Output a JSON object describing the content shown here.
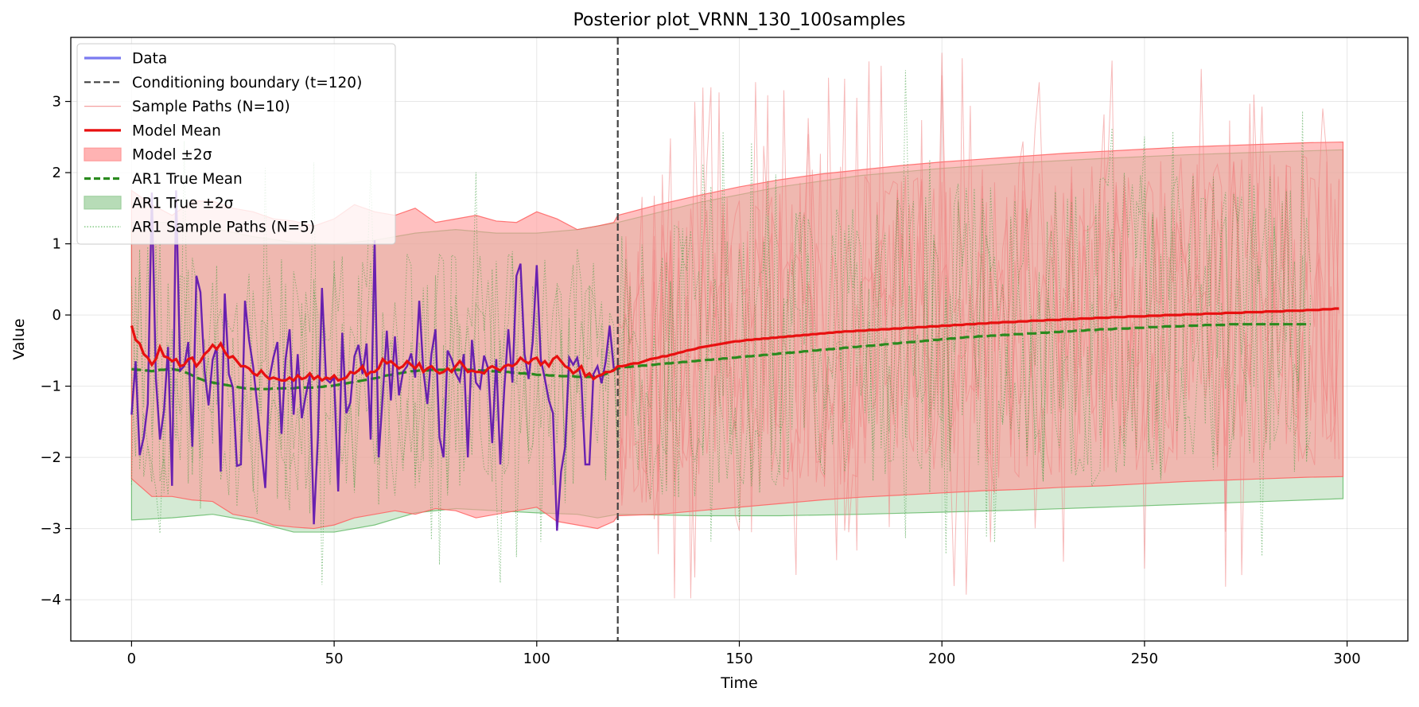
{
  "chart_data": {
    "type": "line",
    "title": "Posterior plot_VRNN_130_100samples",
    "xlabel": "Time",
    "ylabel": "Value",
    "xlim": [
      -15,
      315
    ],
    "ylim": [
      -4.58,
      3.9
    ],
    "xticks": [
      0,
      50,
      100,
      150,
      200,
      250,
      300
    ],
    "yticks": [
      -4,
      -3,
      -2,
      -1,
      0,
      1,
      2,
      3
    ],
    "grid": true,
    "legend_position": "upper-left",
    "conditioning_boundary_x": 120,
    "legend": [
      {
        "label": "Data",
        "style": "line",
        "color": "#7b7bf0"
      },
      {
        "label": "Conditioning boundary (t=120)",
        "style": "dashed",
        "color": "#404040"
      },
      {
        "label": "Sample Paths (N=10)",
        "style": "thin-line",
        "color": "#f4a0a0"
      },
      {
        "label": "Model Mean",
        "style": "line",
        "color": "#e81010"
      },
      {
        "label": "Model ±2σ",
        "style": "patch",
        "color": "#ff9a9a"
      },
      {
        "label": "AR1 True Mean",
        "style": "dashed",
        "color": "#2a8a1e"
      },
      {
        "label": "AR1 True ±2σ",
        "style": "patch",
        "color": "#9fd09f"
      },
      {
        "label": "AR1 Sample Paths (N=5)",
        "style": "dotted",
        "color": "#6bbf6b"
      }
    ],
    "series": [
      {
        "name": "Data",
        "color": "#5a10b0",
        "x_start": 0,
        "values": [
          -1.4,
          -0.65,
          -1.97,
          -1.72,
          -1.25,
          1.72,
          -0.89,
          -1.75,
          -1.34,
          -0.45,
          -2.4,
          1.75,
          -0.78,
          -0.72,
          -0.38,
          -1.85,
          0.55,
          0.32,
          -0.78,
          -1.27,
          -0.63,
          -0.45,
          -2.2,
          0.3,
          -0.83,
          -1.02,
          -2.12,
          -2.1,
          0.2,
          -0.35,
          -0.72,
          -1.25,
          -1.84,
          -2.43,
          -0.9,
          -0.6,
          -0.38,
          -1.67,
          -0.62,
          -0.2,
          -1.4,
          -0.55,
          -1.45,
          -1.13,
          -0.85,
          -2.94,
          -1.72,
          0.38,
          -0.9,
          -0.95,
          -0.88,
          -2.48,
          -0.25,
          -1.38,
          -1.23,
          -0.58,
          -0.42,
          -0.83,
          -0.4,
          -1.75,
          1.05,
          -2.0,
          -1.13,
          -0.22,
          -1.2,
          -0.3,
          -1.13,
          -0.8,
          -0.72,
          -0.54,
          -0.88,
          0.2,
          -0.78,
          -1.25,
          -0.55,
          -0.2,
          -1.72,
          -2.0,
          -0.5,
          -0.62,
          -0.82,
          -0.93,
          -0.55,
          -2.0,
          -0.35,
          -0.95,
          -1.03,
          -0.57,
          -0.75,
          -1.8,
          -0.62,
          -2.1,
          -1.02,
          -0.2,
          -0.95,
          0.55,
          0.72,
          -0.55,
          -0.9,
          -0.38,
          0.7,
          -0.62,
          -0.9,
          -1.2,
          -1.38,
          -3.03,
          -2.2,
          -1.85,
          -0.6,
          -0.7,
          -0.6,
          -0.9,
          -2.1,
          -2.1,
          -0.83,
          -0.72,
          -0.96,
          -0.66,
          -0.15,
          -0.75
        ]
      },
      {
        "name": "Model Mean",
        "color": "#e81010",
        "x_start": 0,
        "values": [
          -0.15,
          -0.35,
          -0.4,
          -0.55,
          -0.6,
          -0.7,
          -0.62,
          -0.45,
          -0.58,
          -0.6,
          -0.65,
          -0.62,
          -0.72,
          -0.7,
          -0.62,
          -0.6,
          -0.72,
          -0.65,
          -0.55,
          -0.5,
          -0.42,
          -0.48,
          -0.4,
          -0.52,
          -0.6,
          -0.58,
          -0.65,
          -0.72,
          -0.72,
          -0.75,
          -0.82,
          -0.85,
          -0.78,
          -0.85,
          -0.9,
          -0.88,
          -0.9,
          -0.92,
          -0.92,
          -0.88,
          -0.92,
          -0.85,
          -0.9,
          -0.88,
          -0.82,
          -0.9,
          -0.86,
          -0.92,
          -0.88,
          -0.9,
          -0.85,
          -0.92,
          -0.9,
          -0.88,
          -0.8,
          -0.82,
          -0.78,
          -0.72,
          -0.85,
          -0.8,
          -0.8,
          -0.75,
          -0.62,
          -0.68,
          -0.65,
          -0.7,
          -0.75,
          -0.72,
          -0.65,
          -0.7,
          -0.75,
          -0.68,
          -0.8,
          -0.75,
          -0.72,
          -0.78,
          -0.82,
          -0.8,
          -0.75,
          -0.8,
          -0.72,
          -0.65,
          -0.72,
          -0.8,
          -0.78,
          -0.8,
          -0.8,
          -0.82,
          -0.75,
          -0.72,
          -0.75,
          -0.78,
          -0.72,
          -0.7,
          -0.72,
          -0.68,
          -0.6,
          -0.65,
          -0.68,
          -0.62,
          -0.6,
          -0.7,
          -0.65,
          -0.72,
          -0.62,
          -0.58,
          -0.65,
          -0.72,
          -0.75,
          -0.82,
          -0.78,
          -0.72,
          -0.86,
          -0.82,
          -0.9,
          -0.86,
          -0.84,
          -0.8,
          -0.8,
          -0.78,
          -0.72,
          -0.72,
          -0.71,
          -0.69,
          -0.68,
          -0.68,
          -0.66,
          -0.64,
          -0.62,
          -0.61,
          -0.6,
          -0.58,
          -0.58,
          -0.56,
          -0.55,
          -0.53,
          -0.52,
          -0.5,
          -0.49,
          -0.48,
          -0.46,
          -0.45,
          -0.44,
          -0.43,
          -0.42,
          -0.41,
          -0.4,
          -0.39,
          -0.38,
          -0.37,
          -0.37,
          -0.36,
          -0.35,
          -0.35,
          -0.34,
          -0.34,
          -0.33,
          -0.33,
          -0.32,
          -0.32,
          -0.31,
          -0.31,
          -0.3,
          -0.3,
          -0.29,
          -0.29,
          -0.28,
          -0.28,
          -0.27,
          -0.27,
          -0.26,
          -0.26,
          -0.25,
          -0.25,
          -0.24,
          -0.24,
          -0.23,
          -0.23,
          -0.23,
          -0.22,
          -0.22,
          -0.22,
          -0.21,
          -0.21,
          -0.21,
          -0.2,
          -0.2,
          -0.2,
          -0.19,
          -0.19,
          -0.19,
          -0.18,
          -0.18,
          -0.18,
          -0.17,
          -0.17,
          -0.17,
          -0.16,
          -0.16,
          -0.16,
          -0.15,
          -0.15,
          -0.15,
          -0.14,
          -0.14,
          -0.14,
          -0.13,
          -0.13,
          -0.13,
          -0.12,
          -0.12,
          -0.12,
          -0.11,
          -0.11,
          -0.11,
          -0.1,
          -0.1,
          -0.1,
          -0.1,
          -0.09,
          -0.09,
          -0.09,
          -0.08,
          -0.08,
          -0.08,
          -0.08,
          -0.07,
          -0.07,
          -0.07,
          -0.07,
          -0.06,
          -0.06,
          -0.06,
          -0.06,
          -0.05,
          -0.05,
          -0.05,
          -0.05,
          -0.04,
          -0.04,
          -0.04,
          -0.04,
          -0.03,
          -0.03,
          -0.03,
          -0.03,
          -0.02,
          -0.02,
          -0.02,
          -0.02,
          -0.02,
          -0.01,
          -0.01,
          -0.01,
          -0.01,
          0.0,
          0.0,
          0.0,
          0.0,
          0.0,
          0.01,
          0.01,
          0.01,
          0.01,
          0.01,
          0.02,
          0.02,
          0.02,
          0.02,
          0.02,
          0.03,
          0.03,
          0.03,
          0.03,
          0.03,
          0.04,
          0.04,
          0.04,
          0.04,
          0.04,
          0.05,
          0.05,
          0.05,
          0.05,
          0.05,
          0.06,
          0.06,
          0.06,
          0.06,
          0.06,
          0.07,
          0.07,
          0.07,
          0.07,
          0.08,
          0.08,
          0.08,
          0.09,
          0.09
        ]
      },
      {
        "name": "AR1 True Mean",
        "color": "#2a8a1e",
        "x_start": 0,
        "values": [
          -0.76,
          -0.77,
          -0.77,
          -0.78,
          -0.78,
          -0.79,
          -0.78,
          -0.77,
          -0.77,
          -0.76,
          -0.76,
          -0.77,
          -0.78,
          -0.8,
          -0.82,
          -0.85,
          -0.88,
          -0.9,
          -0.92,
          -0.93,
          -0.95,
          -0.96,
          -0.97,
          -0.98,
          -0.99,
          -1.0,
          -1.01,
          -1.02,
          -1.03,
          -1.03,
          -1.04,
          -1.04,
          -1.04,
          -1.04,
          -1.04,
          -1.03,
          -1.03,
          -1.03,
          -1.03,
          -1.03,
          -1.03,
          -1.02,
          -1.02,
          -1.02,
          -1.02,
          -1.02,
          -1.01,
          -1.01,
          -1.0,
          -1.0,
          -0.99,
          -0.98,
          -0.97,
          -0.96,
          -0.95,
          -0.94,
          -0.93,
          -0.92,
          -0.91,
          -0.9,
          -0.89,
          -0.88,
          -0.86,
          -0.85,
          -0.84,
          -0.83,
          -0.82,
          -0.81,
          -0.8,
          -0.79,
          -0.79,
          -0.78,
          -0.78,
          -0.78,
          -0.77,
          -0.77,
          -0.77,
          -0.77,
          -0.77,
          -0.77,
          -0.77,
          -0.77,
          -0.77,
          -0.77,
          -0.77,
          -0.77,
          -0.78,
          -0.78,
          -0.78,
          -0.79,
          -0.79,
          -0.8,
          -0.8,
          -0.8,
          -0.81,
          -0.81,
          -0.82,
          -0.82,
          -0.83,
          -0.83,
          -0.84,
          -0.84,
          -0.84,
          -0.85,
          -0.85,
          -0.85,
          -0.86,
          -0.86,
          -0.86,
          -0.86,
          -0.87,
          -0.87,
          -0.87,
          -0.87,
          -0.87,
          -0.86,
          -0.85,
          -0.83,
          -0.8,
          -0.77,
          -0.75,
          -0.74,
          -0.73,
          -0.73,
          -0.72,
          -0.72,
          -0.71,
          -0.71,
          -0.7,
          -0.7,
          -0.69,
          -0.69,
          -0.68,
          -0.68,
          -0.67,
          -0.67,
          -0.66,
          -0.66,
          -0.65,
          -0.65,
          -0.64,
          -0.64,
          -0.63,
          -0.63,
          -0.62,
          -0.62,
          -0.61,
          -0.61,
          -0.6,
          -0.6,
          -0.59,
          -0.59,
          -0.58,
          -0.58,
          -0.57,
          -0.57,
          -0.56,
          -0.56,
          -0.55,
          -0.55,
          -0.54,
          -0.54,
          -0.53,
          -0.53,
          -0.52,
          -0.52,
          -0.51,
          -0.51,
          -0.5,
          -0.5,
          -0.49,
          -0.49,
          -0.48,
          -0.48,
          -0.47,
          -0.47,
          -0.46,
          -0.46,
          -0.45,
          -0.45,
          -0.44,
          -0.44,
          -0.43,
          -0.43,
          -0.42,
          -0.42,
          -0.41,
          -0.41,
          -0.4,
          -0.4,
          -0.39,
          -0.39,
          -0.38,
          -0.38,
          -0.37,
          -0.37,
          -0.36,
          -0.36,
          -0.35,
          -0.35,
          -0.34,
          -0.34,
          -0.33,
          -0.33,
          -0.32,
          -0.32,
          -0.31,
          -0.31,
          -0.31,
          -0.3,
          -0.3,
          -0.3,
          -0.29,
          -0.29,
          -0.29,
          -0.28,
          -0.28,
          -0.28,
          -0.27,
          -0.27,
          -0.27,
          -0.26,
          -0.26,
          -0.26,
          -0.25,
          -0.25,
          -0.25,
          -0.24,
          -0.24,
          -0.24,
          -0.23,
          -0.23,
          -0.23,
          -0.22,
          -0.22,
          -0.22,
          -0.21,
          -0.21,
          -0.21,
          -0.2,
          -0.2,
          -0.2,
          -0.2,
          -0.19,
          -0.19,
          -0.19,
          -0.19,
          -0.18,
          -0.18,
          -0.18,
          -0.18,
          -0.17,
          -0.17,
          -0.17,
          -0.17,
          -0.16,
          -0.16,
          -0.16,
          -0.16,
          -0.16,
          -0.15,
          -0.15,
          -0.15,
          -0.15,
          -0.15,
          -0.14,
          -0.14,
          -0.14,
          -0.14,
          -0.14,
          -0.14,
          -0.13,
          -0.13,
          -0.13,
          -0.13,
          -0.13,
          -0.13,
          -0.13,
          -0.13,
          -0.13,
          -0.13,
          -0.13,
          -0.13,
          -0.13,
          -0.13,
          -0.13,
          -0.13,
          -0.13,
          -0.13,
          -0.13,
          -0.13,
          -0.13
        ]
      }
    ],
    "bands": [
      {
        "name": "Model ±2σ",
        "color": "#ff9a9a",
        "x": [
          0,
          5,
          10,
          15,
          20,
          25,
          30,
          35,
          40,
          45,
          50,
          55,
          60,
          65,
          70,
          75,
          80,
          85,
          90,
          95,
          100,
          105,
          110,
          115,
          119,
          120,
          130,
          140,
          150,
          160,
          170,
          180,
          190,
          200,
          210,
          220,
          230,
          240,
          250,
          260,
          270,
          280,
          290,
          299
        ],
        "upper": [
          1.75,
          1.55,
          1.4,
          1.6,
          1.6,
          1.5,
          1.45,
          1.35,
          1.32,
          1.25,
          1.35,
          1.55,
          1.45,
          1.4,
          1.5,
          1.3,
          1.35,
          1.4,
          1.32,
          1.3,
          1.45,
          1.35,
          1.2,
          1.25,
          1.3,
          1.4,
          1.55,
          1.68,
          1.8,
          1.9,
          1.98,
          2.04,
          2.1,
          2.15,
          2.19,
          2.23,
          2.27,
          2.3,
          2.33,
          2.36,
          2.38,
          2.4,
          2.42,
          2.43
        ],
        "lower": [
          -2.3,
          -2.55,
          -2.55,
          -2.6,
          -2.62,
          -2.8,
          -2.85,
          -2.95,
          -2.98,
          -3.0,
          -2.95,
          -2.85,
          -2.8,
          -2.75,
          -2.8,
          -2.72,
          -2.75,
          -2.85,
          -2.8,
          -2.75,
          -2.7,
          -2.9,
          -2.95,
          -3.0,
          -2.9,
          -2.82,
          -2.8,
          -2.75,
          -2.7,
          -2.65,
          -2.6,
          -2.56,
          -2.53,
          -2.5,
          -2.47,
          -2.45,
          -2.42,
          -2.4,
          -2.37,
          -2.34,
          -2.32,
          -2.3,
          -2.28,
          -2.27
        ]
      },
      {
        "name": "AR1 True ±2σ",
        "color": "#9fd09f",
        "x": [
          0,
          10,
          20,
          30,
          40,
          50,
          60,
          70,
          80,
          90,
          100,
          110,
          115,
          120,
          140,
          160,
          180,
          200,
          220,
          240,
          260,
          280,
          299
        ],
        "upper": [
          1.3,
          1.3,
          1.22,
          1.1,
          1.02,
          1.0,
          1.05,
          1.15,
          1.2,
          1.15,
          1.15,
          1.2,
          1.25,
          1.3,
          1.58,
          1.8,
          1.96,
          2.06,
          2.14,
          2.2,
          2.25,
          2.29,
          2.32
        ],
        "lower": [
          -2.88,
          -2.85,
          -2.8,
          -2.9,
          -3.05,
          -3.05,
          -2.95,
          -2.78,
          -2.72,
          -2.75,
          -2.78,
          -2.8,
          -2.85,
          -2.8,
          -2.82,
          -2.82,
          -2.8,
          -2.77,
          -2.74,
          -2.7,
          -2.66,
          -2.62,
          -2.58
        ]
      }
    ]
  }
}
